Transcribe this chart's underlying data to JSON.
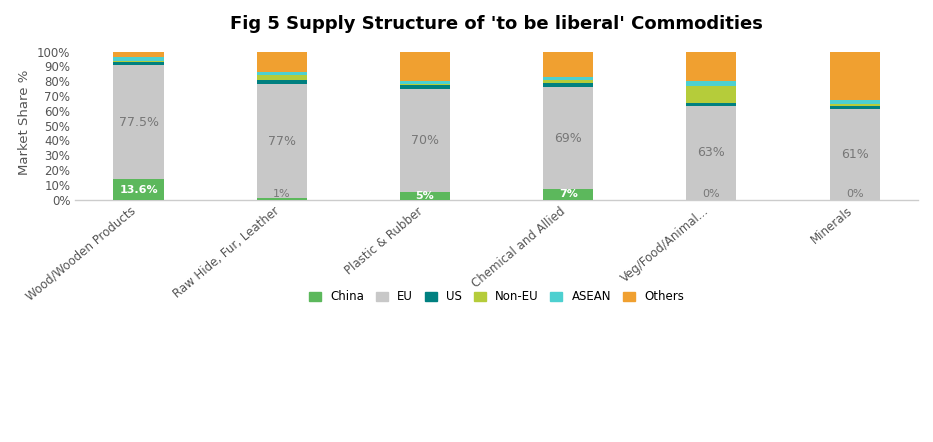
{
  "title": "Fig 5 Supply Structure of 'to be liberal' Commodities",
  "ylabel": "Market Share %",
  "categories": [
    "Wood/Wooden Products",
    "Raw Hide, Fur, Leather",
    "Plastic & Rubber",
    "Chemical and Allied",
    "Veg/Food/Animal...",
    "Minerals"
  ],
  "series": {
    "China": [
      13.6,
      1.0,
      5.0,
      7.0,
      0.0,
      0.0
    ],
    "EU": [
      77.5,
      77.0,
      70.0,
      69.0,
      63.0,
      61.0
    ],
    "US": [
      2.0,
      3.0,
      2.5,
      3.0,
      2.0,
      2.0
    ],
    "Non-EU": [
      0.5,
      3.0,
      0.5,
      1.5,
      12.0,
      1.5
    ],
    "ASEAN": [
      2.5,
      2.5,
      2.0,
      2.5,
      3.0,
      2.5
    ],
    "Others": [
      3.9,
      13.5,
      20.0,
      17.0,
      20.0,
      33.0
    ]
  },
  "colors": {
    "China": "#5cb85c",
    "EU": "#c8c8c8",
    "US": "#008080",
    "Non-EU": "#b5cc3a",
    "ASEAN": "#4dd0d0",
    "Others": "#f0a030"
  },
  "bar_labels": {
    "China": [
      "13.6%",
      "1%",
      "5%",
      "7%",
      "0%",
      "0%"
    ],
    "EU": [
      "77.5%",
      "77%",
      "70%",
      "69%",
      "63%",
      "61%"
    ]
  },
  "china_label_color_nonzero": "#ffffff",
  "china_label_fontweight": "bold",
  "eu_label_color": "#777777",
  "yticks": [
    0,
    10,
    20,
    30,
    40,
    50,
    60,
    70,
    80,
    90,
    100
  ],
  "ytick_labels": [
    "0%",
    "10%",
    "20%",
    "30%",
    "40%",
    "50%",
    "60%",
    "70%",
    "80%",
    "90%",
    "100%"
  ],
  "ylim": [
    0,
    104
  ],
  "background_color": "#ffffff",
  "title_fontsize": 13,
  "ylabel_fontsize": 9.5,
  "tick_fontsize": 8.5,
  "label_fontsize_china": 8,
  "label_fontsize_eu": 9,
  "legend_fontsize": 8.5,
  "bar_width": 0.35
}
